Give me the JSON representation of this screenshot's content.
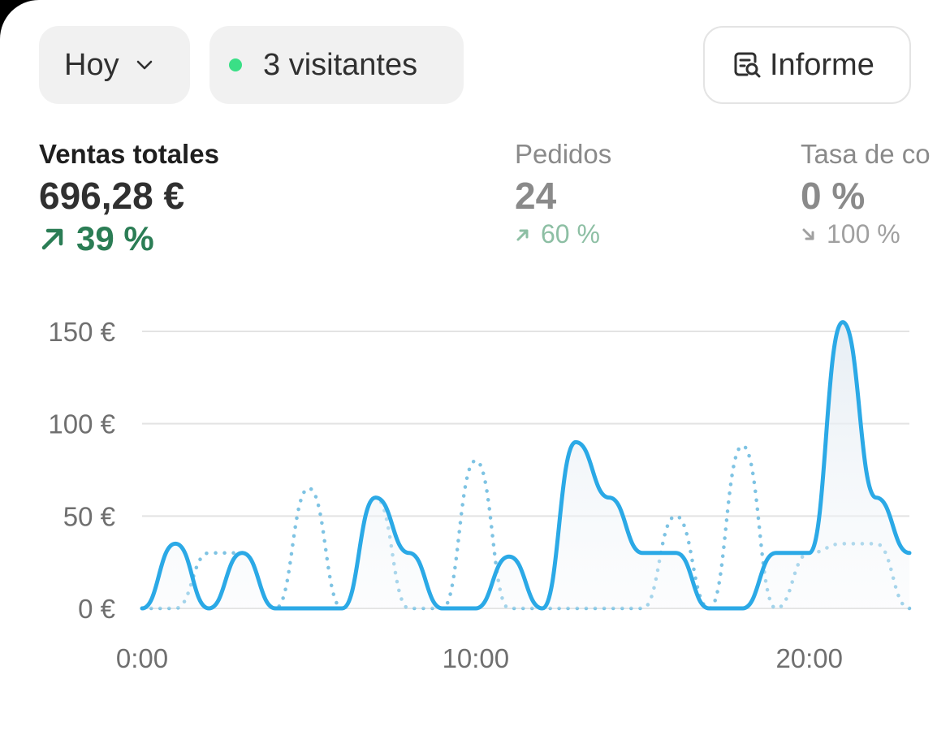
{
  "toolbar": {
    "date_label": "Hoy",
    "visitors_label": "3 visitantes",
    "report_label": "Informe",
    "live_dot_color": "#3adf86"
  },
  "metrics": {
    "sales": {
      "label": "Ventas totales",
      "value": "696,28 €",
      "change": "39 %",
      "direction": "up"
    },
    "orders": {
      "label": "Pedidos",
      "value": "24",
      "change": "60 %",
      "direction": "up"
    },
    "conversion": {
      "label": "Tasa de co",
      "value": "0 %",
      "change": "100 %",
      "direction": "down"
    }
  },
  "chart_data": {
    "type": "line",
    "y_tick_labels": [
      "0 €",
      "50 €",
      "100 €",
      "150 €"
    ],
    "y_ticks": [
      0,
      50,
      100,
      150
    ],
    "ylim": [
      0,
      150
    ],
    "x_tick_labels": [
      "0:00",
      "10:00",
      "20:00"
    ],
    "x_ticks": [
      0,
      10,
      20
    ],
    "xlim": [
      0,
      23
    ],
    "grid": true,
    "series": [
      {
        "style": "solid",
        "color": "#2ba9e6",
        "x": [
          0,
          1,
          2,
          3,
          4,
          5,
          6,
          7,
          8,
          9,
          10,
          11,
          12,
          13,
          14,
          15,
          16,
          17,
          18,
          19,
          20,
          21,
          22,
          23
        ],
        "values": [
          0,
          35,
          0,
          30,
          0,
          0,
          0,
          60,
          30,
          0,
          0,
          28,
          0,
          90,
          60,
          30,
          30,
          0,
          0,
          30,
          30,
          155,
          60,
          30
        ]
      },
      {
        "style": "dotted",
        "color": "#7ec3e3",
        "x": [
          0,
          1,
          2,
          3,
          4,
          5,
          6,
          7,
          8,
          9,
          10,
          11,
          12,
          13,
          14,
          15,
          16,
          17,
          18,
          19,
          20,
          21,
          22,
          23
        ],
        "values": [
          0,
          0,
          30,
          30,
          0,
          65,
          0,
          60,
          0,
          0,
          80,
          0,
          0,
          0,
          0,
          0,
          50,
          0,
          88,
          0,
          30,
          35,
          35,
          0
        ]
      }
    ]
  }
}
